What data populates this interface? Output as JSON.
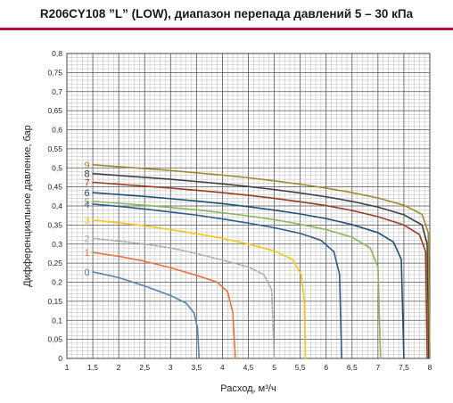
{
  "title": "R206CY108 ”L” (LOW), диапазон перепада давлений 5 – 30 кПа",
  "chart_data": {
    "type": "line",
    "title": "R206CY108 ”L” (LOW), диапазон перепада давлений 5 – 30 кПа",
    "xlabel": "Расход, м³/ч",
    "ylabel": "Дифференциальное давление, бар",
    "xlim": [
      1,
      8
    ],
    "ylim": [
      0,
      0.8
    ],
    "x_ticks": [
      "1",
      "1,5",
      "2",
      "2,5",
      "3",
      "3,5",
      "4",
      "4,5",
      "5",
      "5,5",
      "6",
      "6,5",
      "7",
      "7,5",
      "8"
    ],
    "y_ticks": [
      "0",
      "0,05",
      "0,1",
      "0,15",
      "0,2",
      "0,25",
      "0,3",
      "0,35",
      "0,4",
      "0,45",
      "0,5",
      "0,55",
      "0,6",
      "0,65",
      "0,7",
      "0,75",
      "0,8"
    ],
    "grid": true,
    "series": [
      {
        "name": "0",
        "color": "#4f86b4",
        "dash": false,
        "start_y": 0.227,
        "x_max": 3.55,
        "points": [
          [
            1.5,
            0.227
          ],
          [
            2,
            0.212
          ],
          [
            2.5,
            0.19
          ],
          [
            3,
            0.165
          ],
          [
            3.3,
            0.145
          ],
          [
            3.45,
            0.12
          ],
          [
            3.52,
            0.08
          ],
          [
            3.55,
            0
          ]
        ]
      },
      {
        "name": "1",
        "color": "#e8743a",
        "dash": false,
        "start_y": 0.278,
        "x_max": 4.25,
        "points": [
          [
            1.5,
            0.278
          ],
          [
            2,
            0.268
          ],
          [
            2.5,
            0.255
          ],
          [
            3,
            0.238
          ],
          [
            3.5,
            0.218
          ],
          [
            3.9,
            0.2
          ],
          [
            4.1,
            0.175
          ],
          [
            4.2,
            0.12
          ],
          [
            4.25,
            0
          ]
        ]
      },
      {
        "name": "2",
        "color": "#aaaaaa",
        "dash": true,
        "start_y": 0.315,
        "x_max": 5.0,
        "points": [
          [
            1.5,
            0.315
          ],
          [
            2,
            0.308
          ],
          [
            2.5,
            0.3
          ],
          [
            3,
            0.29
          ],
          [
            3.5,
            0.275
          ],
          [
            4,
            0.258
          ],
          [
            4.5,
            0.24
          ],
          [
            4.8,
            0.22
          ],
          [
            4.95,
            0.18
          ],
          [
            5,
            0
          ]
        ]
      },
      {
        "name": "3",
        "color": "#f5c518",
        "dash": false,
        "start_y": 0.363,
        "x_max": 5.6,
        "points": [
          [
            1.5,
            0.363
          ],
          [
            2,
            0.356
          ],
          [
            2.5,
            0.348
          ],
          [
            3,
            0.338
          ],
          [
            3.5,
            0.327
          ],
          [
            4,
            0.315
          ],
          [
            4.5,
            0.3
          ],
          [
            5,
            0.282
          ],
          [
            5.35,
            0.26
          ],
          [
            5.52,
            0.22
          ],
          [
            5.58,
            0.15
          ],
          [
            5.6,
            0
          ]
        ]
      },
      {
        "name": "4",
        "color": "#2b5c8a",
        "dash": false,
        "start_y": 0.405,
        "x_max": 6.3,
        "points": [
          [
            1.5,
            0.405
          ],
          [
            2,
            0.399
          ],
          [
            2.5,
            0.392
          ],
          [
            3,
            0.384
          ],
          [
            3.5,
            0.376
          ],
          [
            4,
            0.366
          ],
          [
            4.5,
            0.355
          ],
          [
            5,
            0.343
          ],
          [
            5.5,
            0.328
          ],
          [
            5.9,
            0.31
          ],
          [
            6.15,
            0.28
          ],
          [
            6.26,
            0.22
          ],
          [
            6.3,
            0
          ]
        ]
      },
      {
        "name": "5",
        "color": "#8ab659",
        "dash": false,
        "start_y": 0.412,
        "x_max": 7.05,
        "points": [
          [
            1.5,
            0.412
          ],
          [
            2,
            0.407
          ],
          [
            2.5,
            0.402
          ],
          [
            3,
            0.396
          ],
          [
            3.5,
            0.39
          ],
          [
            4,
            0.382
          ],
          [
            4.5,
            0.374
          ],
          [
            5,
            0.364
          ],
          [
            5.5,
            0.352
          ],
          [
            6,
            0.338
          ],
          [
            6.5,
            0.318
          ],
          [
            6.85,
            0.29
          ],
          [
            7,
            0.24
          ],
          [
            7.05,
            0
          ]
        ]
      },
      {
        "name": "6",
        "color": "#1f4e79",
        "dash": false,
        "start_y": 0.435,
        "x_max": 7.5,
        "points": [
          [
            1.5,
            0.435
          ],
          [
            2,
            0.43
          ],
          [
            2.5,
            0.425
          ],
          [
            3,
            0.419
          ],
          [
            3.5,
            0.413
          ],
          [
            4,
            0.406
          ],
          [
            4.5,
            0.398
          ],
          [
            5,
            0.389
          ],
          [
            5.5,
            0.379
          ],
          [
            6,
            0.367
          ],
          [
            6.5,
            0.351
          ],
          [
            7,
            0.33
          ],
          [
            7.3,
            0.305
          ],
          [
            7.45,
            0.26
          ],
          [
            7.5,
            0
          ]
        ]
      },
      {
        "name": "7",
        "color": "#9a3c1e",
        "dash": false,
        "start_y": 0.462,
        "x_max": 7.95,
        "points": [
          [
            1.5,
            0.462
          ],
          [
            2,
            0.457
          ],
          [
            2.5,
            0.452
          ],
          [
            3,
            0.447
          ],
          [
            3.5,
            0.441
          ],
          [
            4,
            0.435
          ],
          [
            4.5,
            0.428
          ],
          [
            5,
            0.42
          ],
          [
            5.5,
            0.411
          ],
          [
            6,
            0.401
          ],
          [
            6.5,
            0.388
          ],
          [
            7,
            0.372
          ],
          [
            7.5,
            0.35
          ],
          [
            7.8,
            0.325
          ],
          [
            7.92,
            0.28
          ],
          [
            7.95,
            0
          ]
        ]
      },
      {
        "name": "8",
        "color": "#404040",
        "dash": false,
        "start_y": 0.485,
        "x_max": 7.98,
        "points": [
          [
            1.5,
            0.485
          ],
          [
            2,
            0.48
          ],
          [
            2.5,
            0.475
          ],
          [
            3,
            0.47
          ],
          [
            3.5,
            0.464
          ],
          [
            4,
            0.458
          ],
          [
            4.5,
            0.451
          ],
          [
            5,
            0.443
          ],
          [
            5.5,
            0.434
          ],
          [
            6,
            0.424
          ],
          [
            6.5,
            0.412
          ],
          [
            7,
            0.397
          ],
          [
            7.5,
            0.377
          ],
          [
            7.85,
            0.35
          ],
          [
            7.95,
            0.3
          ],
          [
            7.98,
            0
          ]
        ]
      },
      {
        "name": "9",
        "color": "#9c8a2c",
        "dash": false,
        "start_y": 0.508,
        "x_max": 8.0,
        "points": [
          [
            1.5,
            0.508
          ],
          [
            2,
            0.503
          ],
          [
            2.5,
            0.498
          ],
          [
            3,
            0.493
          ],
          [
            3.5,
            0.487
          ],
          [
            4,
            0.481
          ],
          [
            4.5,
            0.474
          ],
          [
            5,
            0.466
          ],
          [
            5.5,
            0.457
          ],
          [
            6,
            0.447
          ],
          [
            6.5,
            0.435
          ],
          [
            7,
            0.421
          ],
          [
            7.5,
            0.402
          ],
          [
            7.85,
            0.378
          ],
          [
            7.97,
            0.33
          ],
          [
            8,
            0
          ]
        ]
      }
    ]
  }
}
